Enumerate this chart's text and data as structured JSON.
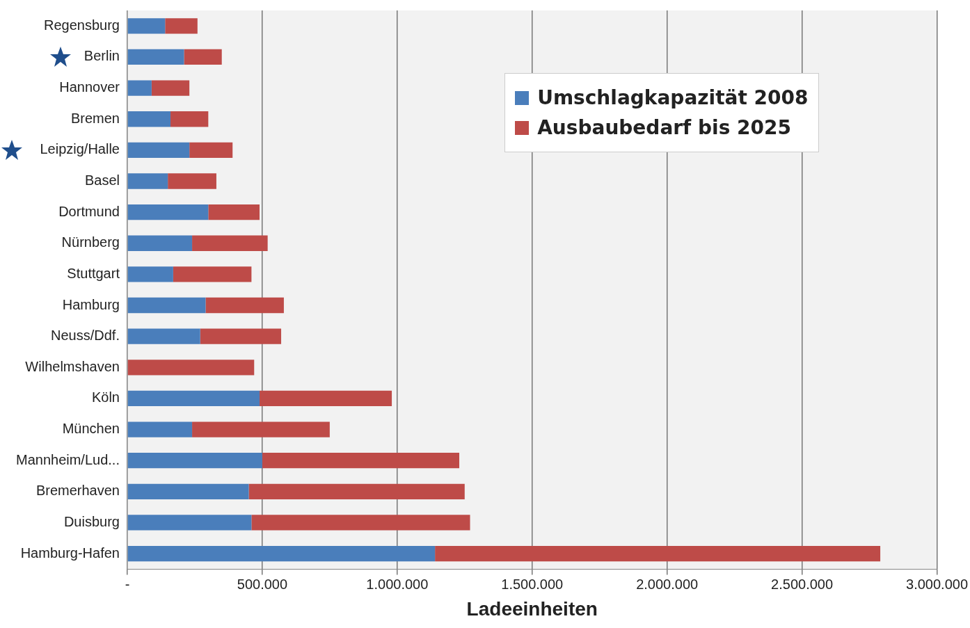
{
  "chart_data": {
    "type": "bar",
    "orientation": "horizontal",
    "stacked": true,
    "xlabel": "Ladeeinheiten",
    "categories": [
      "Regensburg",
      "Berlin",
      "Hannover",
      "Bremen",
      "Leipzig/Halle",
      "Basel",
      "Dortmund",
      "Nürnberg",
      "Stuttgart",
      "Hamburg",
      "Neuss/Ddf.",
      "Wilhelmshaven",
      "Köln",
      "München",
      "Mannheim/Lud...",
      "Bremerhaven",
      "Duisburg",
      "Hamburg-Hafen"
    ],
    "series": [
      {
        "name": "Umschlagkapazität 2008",
        "color": "#4a7ebb",
        "values": [
          140000,
          210000,
          90000,
          160000,
          230000,
          150000,
          300000,
          240000,
          170000,
          290000,
          270000,
          0,
          490000,
          240000,
          500000,
          450000,
          460000,
          1140000
        ]
      },
      {
        "name": "Ausbaubedarf bis 2025",
        "color": "#be4b48",
        "values": [
          120000,
          140000,
          140000,
          140000,
          160000,
          180000,
          190000,
          280000,
          290000,
          290000,
          300000,
          470000,
          490000,
          510000,
          730000,
          800000,
          810000,
          1650000
        ]
      }
    ],
    "xlim": [
      0,
      3000000
    ],
    "xticks": [
      {
        "value": 0,
        "label": "-"
      },
      {
        "value": 500000,
        "label": "500.000"
      },
      {
        "value": 1000000,
        "label": "1.000.000"
      },
      {
        "value": 1500000,
        "label": "1.500.000"
      },
      {
        "value": 2000000,
        "label": "2.000.000"
      },
      {
        "value": 2500000,
        "label": "2.500.000"
      },
      {
        "value": 3000000,
        "label": "3.000.000"
      }
    ],
    "grid": "x",
    "legend": "top right"
  }
}
